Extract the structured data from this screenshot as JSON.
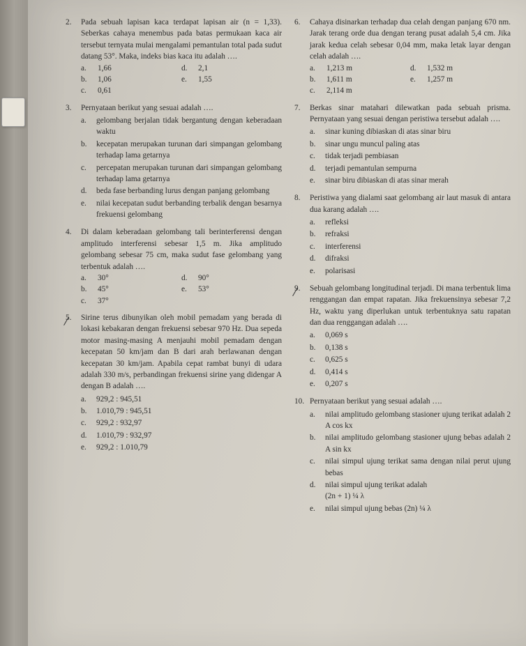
{
  "left": {
    "q2": {
      "num": "2.",
      "stem": "Pada sebuah lapisan kaca terdapat lapisan air (n = 1,33). Seberkas cahaya menembus pada batas permukaan kaca air tersebut ternyata mulai mengalami pemantulan total pada sudut datang 53°. Maka, indeks bias kaca itu adalah ….",
      "a": "1,66",
      "b": "1,06",
      "c": "0,61",
      "d": "2,1",
      "e": "1,55"
    },
    "q3": {
      "num": "3.",
      "stem": "Pernyataan berikut yang sesuai adalah ….",
      "a": "gelombang berjalan tidak bergantung dengan keberadaan waktu",
      "b": "kecepatan merupakan turunan dari simpangan gelombang terhadap lama getarnya",
      "c": "percepatan merupakan turunan dari simpangan gelombang terhadap lama getarnya",
      "d": "beda fase berbanding lurus dengan panjang gelombang",
      "e": "nilai kecepatan sudut berbanding terbalik dengan besarnya frekuensi gelombang"
    },
    "q4": {
      "num": "4.",
      "stem": "Di dalam keberadaan gelombang tali berinterferensi dengan amplitudo interferensi sebesar 1,5 m. Jika amplitudo gelombang sebesar 75 cm, maka sudut fase gelombang yang terbentuk adalah ….",
      "a": "30°",
      "b": "45°",
      "c": "37°",
      "d": "90°",
      "e": "53°"
    },
    "q5": {
      "num": "5.",
      "stem": "Sirine terus dibunyikan oleh mobil pemadam yang berada di lokasi kebakaran dengan frekuensi sebesar 970 Hz. Dua sepeda motor masing-masing A menjauhi mobil pemadam dengan kecepatan 50 km/jam dan B dari arah berlawanan dengan kecepatan 30 km/jam. Apabila cepat rambat bunyi di udara adalah 330 m/s, perbandingan frekuensi sirine yang didengar A dengan B adalah ….",
      "a": "929,2 : 945,51",
      "b": "1.010,79 : 945,51",
      "c": "929,2 : 932,97",
      "d": "1.010,79 : 932,97",
      "e": "929,2 : 1.010,79"
    }
  },
  "right": {
    "q6": {
      "num": "6.",
      "stem": "Cahaya disinarkan terhadap dua celah dengan panjang 670 nm. Jarak terang orde dua dengan terang pusat adalah 5,4 cm. Jika jarak kedua celah sebesar 0,04 mm, maka letak layar dengan celah adalah ….",
      "a": "1,213 m",
      "b": "1,611 m",
      "c": "2,114 m",
      "d": "1,532 m",
      "e": "1,257 m"
    },
    "q7": {
      "num": "7.",
      "stem": "Berkas sinar matahari dilewatkan pada sebuah prisma. Pernyataan yang sesuai dengan peristiwa tersebut adalah ….",
      "a": "sinar kuning dibiaskan di atas sinar biru",
      "b": "sinar ungu muncul paling atas",
      "c": "tidak terjadi pembiasan",
      "d": "terjadi pemantulan sempurna",
      "e": "sinar biru dibiaskan di atas sinar merah"
    },
    "q8": {
      "num": "8.",
      "stem": "Peristiwa yang dialami saat gelombang air laut masuk di antara dua karang adalah ….",
      "a": "refleksi",
      "b": "refraksi",
      "c": "interferensi",
      "d": "difraksi",
      "e": "polarisasi"
    },
    "q9": {
      "num": "9.",
      "stem": "Sebuah gelombang longitudinal terjadi. Di mana terbentuk lima renggangan dan empat rapatan. Jika frekuensinya sebesar 7,2 Hz, waktu yang diperlukan untuk terbentuknya satu rapatan dan dua renggangan adalah ….",
      "a": "0,069 s",
      "b": "0,138 s",
      "c": "0,625 s",
      "d": "0,414 s",
      "e": "0,207 s"
    },
    "q10": {
      "num": "10.",
      "stem": "Pernyataan berikut yang sesuai adalah ….",
      "a": "nilai amplitudo gelombang stasioner ujung terikat adalah 2 A cos kx",
      "b": "nilai amplitudo gelombang stasioner ujung bebas adalah 2 A sin kx",
      "c": "nilai simpul ujung terikat sama dengan nilai perut ujung bebas",
      "d_pre": "nilai simpul ujung terikat adalah",
      "d_expr": "(2n + 1) ¼ λ",
      "e_pre": "nilai simpul ujung bebas (2n) ¼ λ"
    }
  },
  "letters": {
    "a": "a.",
    "b": "b.",
    "c": "c.",
    "d": "d.",
    "e": "e."
  }
}
